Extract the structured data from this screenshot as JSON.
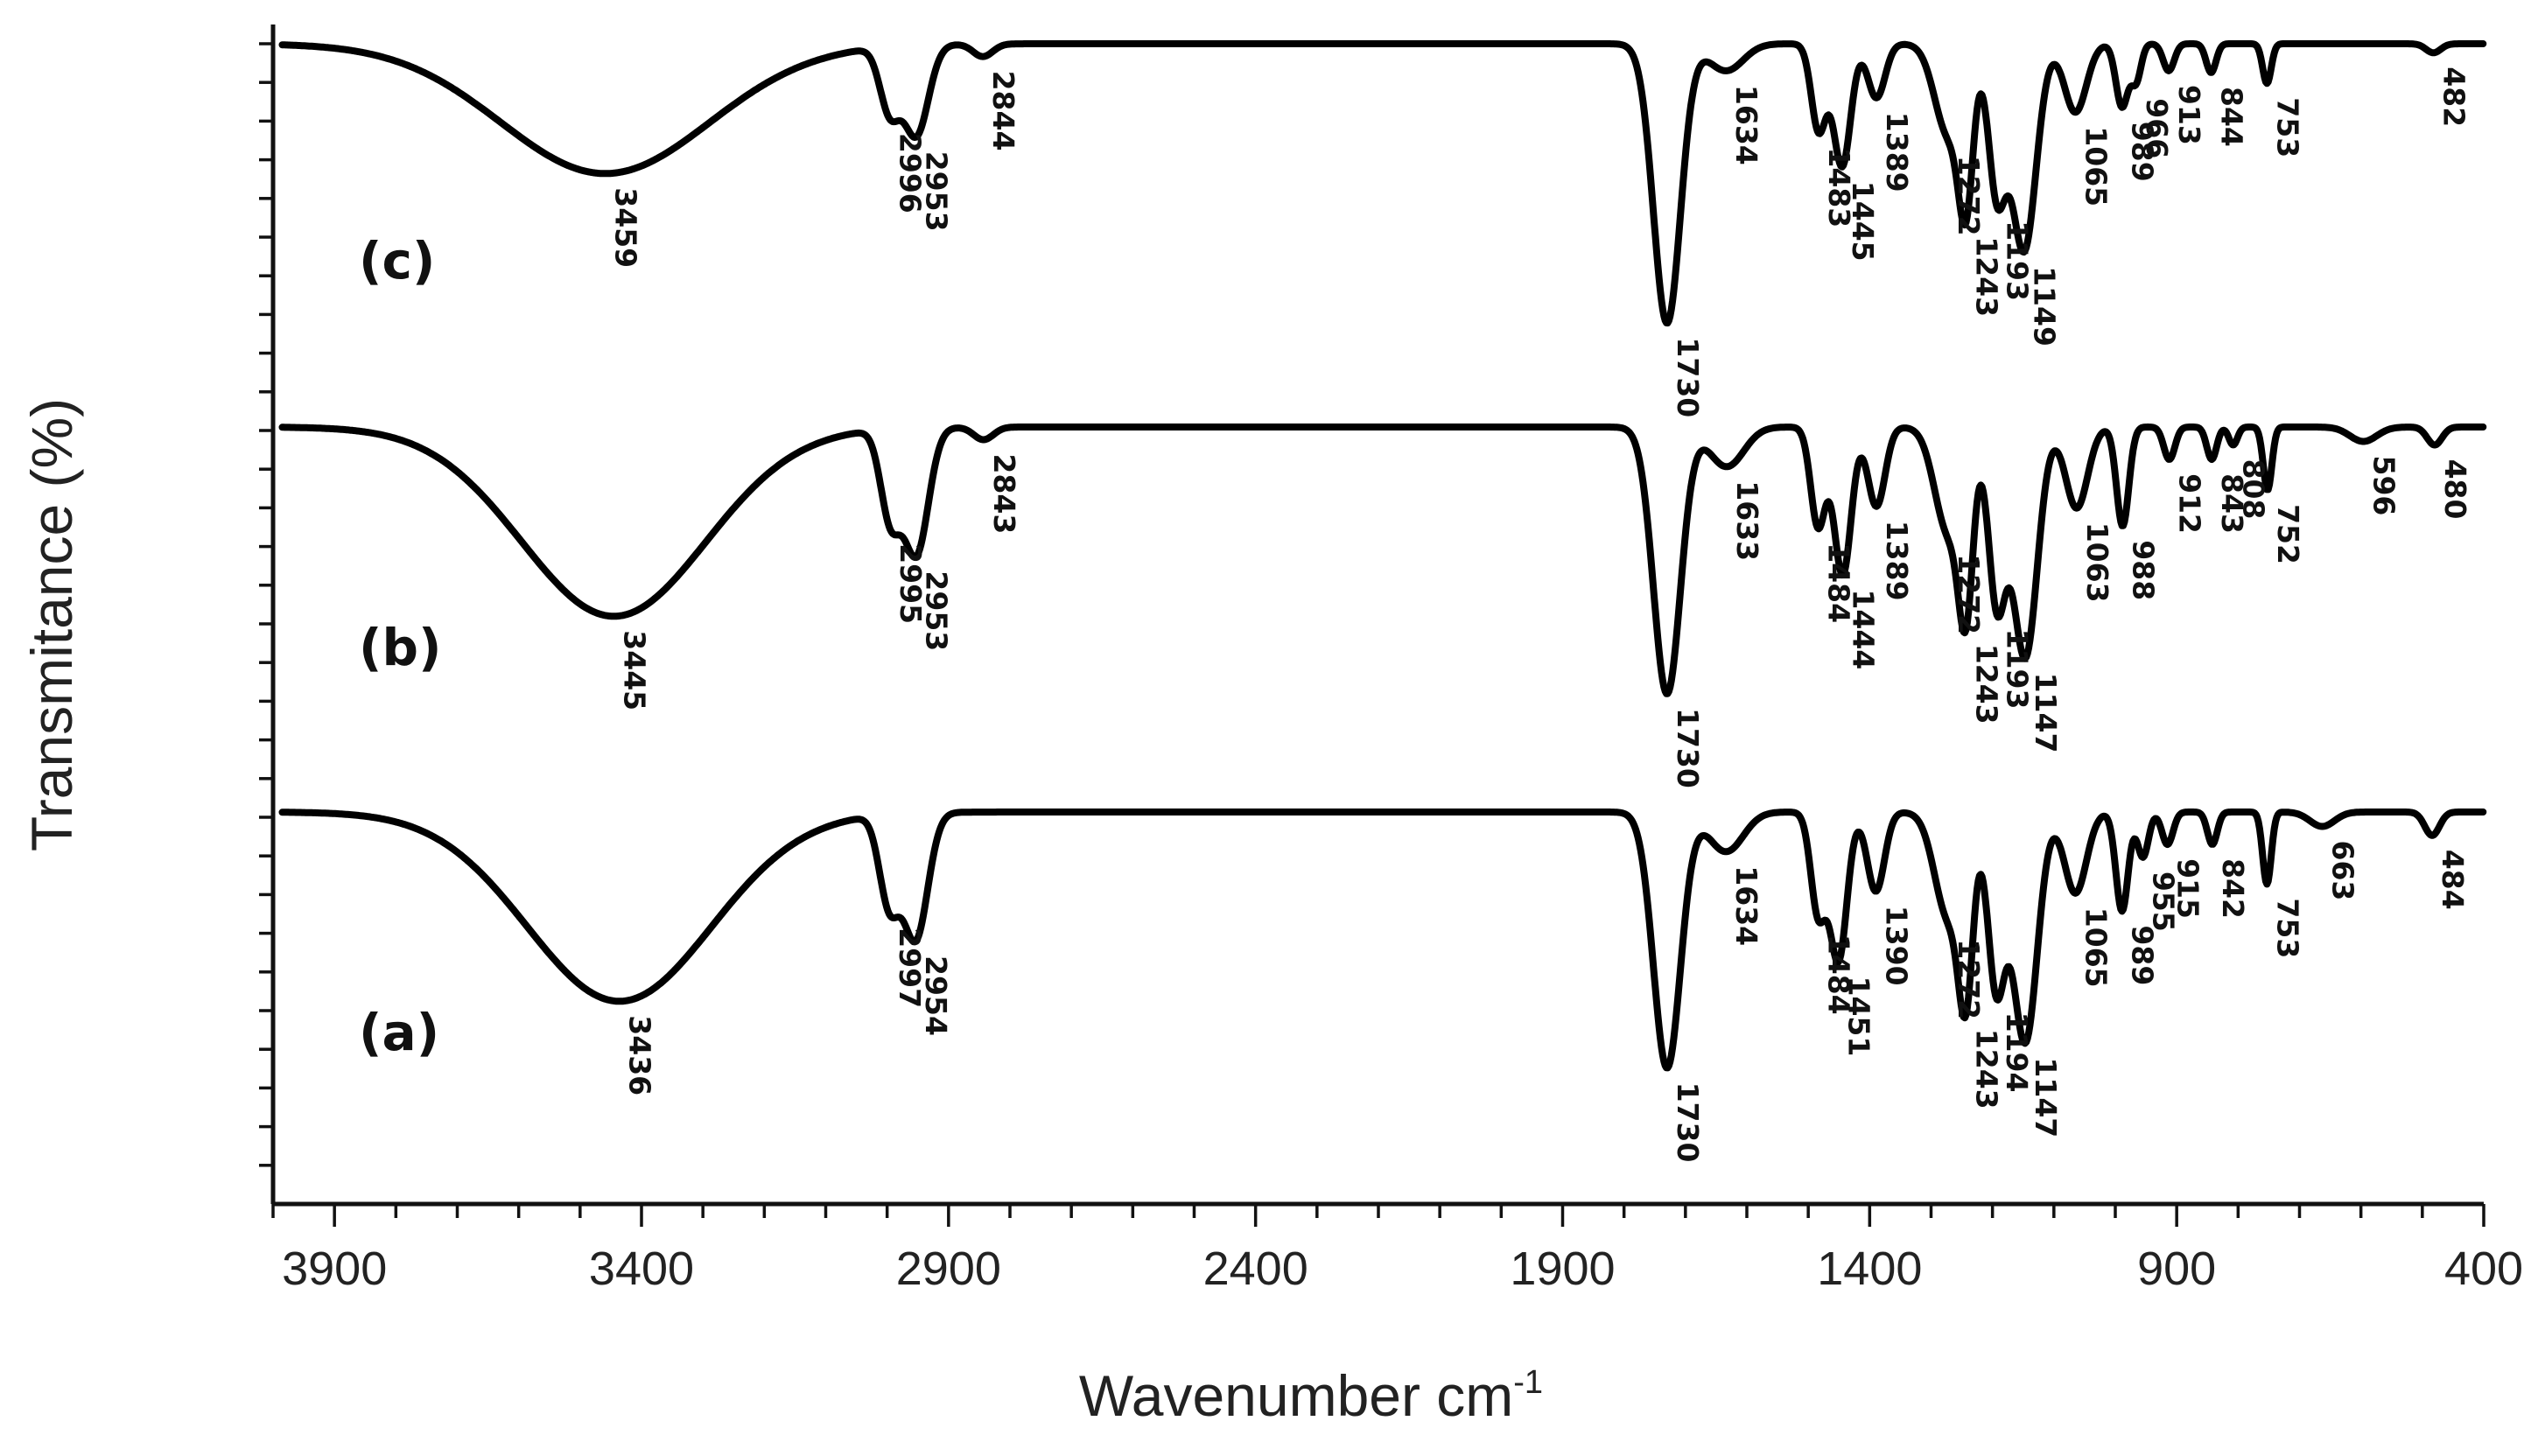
{
  "chart_data": {
    "type": "line",
    "title": "",
    "xlabel": "Wavenumber cm",
    "xlabel_superscript": "-1",
    "ylabel": "Transmitance (%)",
    "xlim": [
      4000,
      400
    ],
    "x_ticks": [
      3900,
      3400,
      2900,
      2400,
      1900,
      1400,
      900,
      400
    ],
    "x_tick_labels": [
      "3900",
      "3400",
      "2900",
      "2400",
      "1900",
      "1400",
      "900",
      "400"
    ],
    "grid": false,
    "series": [
      {
        "name": "(c)",
        "peaks": [
          {
            "wavenumber": 3459,
            "depth": 0.72,
            "width": 170,
            "label": "3459"
          },
          {
            "wavenumber": 2996,
            "depth": 0.35,
            "width": 16,
            "label": "2996"
          },
          {
            "wavenumber": 2953,
            "depth": 0.5,
            "width": 20,
            "label": "2953"
          },
          {
            "wavenumber": 2844,
            "depth": 0.07,
            "width": 16,
            "label": "2844"
          },
          {
            "wavenumber": 1730,
            "depth": 1.55,
            "width": 22,
            "label": "1730"
          },
          {
            "wavenumber": 1634,
            "depth": 0.15,
            "width": 28,
            "label": "1634"
          },
          {
            "wavenumber": 1483,
            "depth": 0.48,
            "width": 12,
            "label": "1483"
          },
          {
            "wavenumber": 1445,
            "depth": 0.68,
            "width": 14,
            "label": "1445"
          },
          {
            "wavenumber": 1389,
            "depth": 0.3,
            "width": 14,
            "label": "1389"
          },
          {
            "wavenumber": 1272,
            "depth": 0.5,
            "width": 22,
            "label": "1272"
          },
          {
            "wavenumber": 1243,
            "depth": 0.78,
            "width": 12,
            "label": "1243"
          },
          {
            "wavenumber": 1193,
            "depth": 0.8,
            "width": 14,
            "label": "1193"
          },
          {
            "wavenumber": 1149,
            "depth": 1.15,
            "width": 20,
            "label": "1149"
          },
          {
            "wavenumber": 1065,
            "depth": 0.38,
            "width": 18,
            "label": "1065"
          },
          {
            "wavenumber": 989,
            "depth": 0.35,
            "width": 10,
            "label": "989"
          },
          {
            "wavenumber": 966,
            "depth": 0.2,
            "width": 8,
            "label": "966"
          },
          {
            "wavenumber": 913,
            "depth": 0.15,
            "width": 9,
            "label": "913"
          },
          {
            "wavenumber": 844,
            "depth": 0.16,
            "width": 8,
            "label": "844"
          },
          {
            "wavenumber": 753,
            "depth": 0.22,
            "width": 7,
            "label": "753"
          },
          {
            "wavenumber": 482,
            "depth": 0.05,
            "width": 12,
            "label": "482"
          }
        ]
      },
      {
        "name": "(b)",
        "peaks": [
          {
            "wavenumber": 3445,
            "depth": 1.05,
            "width": 150,
            "label": "3445"
          },
          {
            "wavenumber": 2995,
            "depth": 0.48,
            "width": 16,
            "label": "2995"
          },
          {
            "wavenumber": 2953,
            "depth": 0.7,
            "width": 20,
            "label": "2953"
          },
          {
            "wavenumber": 2843,
            "depth": 0.07,
            "width": 16,
            "label": "2843"
          },
          {
            "wavenumber": 1730,
            "depth": 1.48,
            "width": 22,
            "label": "1730"
          },
          {
            "wavenumber": 1633,
            "depth": 0.22,
            "width": 28,
            "label": "1633"
          },
          {
            "wavenumber": 1484,
            "depth": 0.55,
            "width": 12,
            "label": "1484"
          },
          {
            "wavenumber": 1444,
            "depth": 0.82,
            "width": 14,
            "label": "1444"
          },
          {
            "wavenumber": 1389,
            "depth": 0.44,
            "width": 14,
            "label": "1389"
          },
          {
            "wavenumber": 1272,
            "depth": 0.58,
            "width": 22,
            "label": "1272"
          },
          {
            "wavenumber": 1243,
            "depth": 0.88,
            "width": 12,
            "label": "1243"
          },
          {
            "wavenumber": 1193,
            "depth": 0.95,
            "width": 14,
            "label": "1193"
          },
          {
            "wavenumber": 1147,
            "depth": 1.28,
            "width": 20,
            "label": "1147"
          },
          {
            "wavenumber": 1063,
            "depth": 0.45,
            "width": 18,
            "label": "1063"
          },
          {
            "wavenumber": 988,
            "depth": 0.55,
            "width": 10,
            "label": "988"
          },
          {
            "wavenumber": 912,
            "depth": 0.18,
            "width": 9,
            "label": "912"
          },
          {
            "wavenumber": 843,
            "depth": 0.18,
            "width": 8,
            "label": "843"
          },
          {
            "wavenumber": 808,
            "depth": 0.1,
            "width": 7,
            "label": "808"
          },
          {
            "wavenumber": 752,
            "depth": 0.35,
            "width": 7,
            "label": "752"
          },
          {
            "wavenumber": 596,
            "depth": 0.08,
            "width": 22,
            "label": "596"
          },
          {
            "wavenumber": 480,
            "depth": 0.1,
            "width": 12,
            "label": "480"
          }
        ]
      },
      {
        "name": "(a)",
        "peaks": [
          {
            "wavenumber": 3436,
            "depth": 1.05,
            "width": 150,
            "label": "3436"
          },
          {
            "wavenumber": 2997,
            "depth": 0.48,
            "width": 16,
            "label": "2997"
          },
          {
            "wavenumber": 2954,
            "depth": 0.7,
            "width": 20,
            "label": "2954"
          },
          {
            "wavenumber": 1730,
            "depth": 1.42,
            "width": 22,
            "label": "1730"
          },
          {
            "wavenumber": 1634,
            "depth": 0.22,
            "width": 28,
            "label": "1634"
          },
          {
            "wavenumber": 1484,
            "depth": 0.55,
            "width": 12,
            "label": "1484"
          },
          {
            "wavenumber": 1451,
            "depth": 0.82,
            "width": 14,
            "label": "1451"
          },
          {
            "wavenumber": 1390,
            "depth": 0.44,
            "width": 14,
            "label": "1390"
          },
          {
            "wavenumber": 1272,
            "depth": 0.58,
            "width": 22,
            "label": "1272"
          },
          {
            "wavenumber": 1243,
            "depth": 0.88,
            "width": 12,
            "label": "1243"
          },
          {
            "wavenumber": 1194,
            "depth": 0.95,
            "width": 14,
            "label": "1194"
          },
          {
            "wavenumber": 1147,
            "depth": 1.28,
            "width": 20,
            "label": "1147"
          },
          {
            "wavenumber": 1065,
            "depth": 0.45,
            "width": 18,
            "label": "1065"
          },
          {
            "wavenumber": 989,
            "depth": 0.55,
            "width": 10,
            "label": "989"
          },
          {
            "wavenumber": 955,
            "depth": 0.25,
            "width": 9,
            "label": "955"
          },
          {
            "wavenumber": 915,
            "depth": 0.18,
            "width": 9,
            "label": "915"
          },
          {
            "wavenumber": 842,
            "depth": 0.18,
            "width": 8,
            "label": "842"
          },
          {
            "wavenumber": 753,
            "depth": 0.4,
            "width": 7,
            "label": "753"
          },
          {
            "wavenumber": 663,
            "depth": 0.08,
            "width": 20,
            "label": "663"
          },
          {
            "wavenumber": 484,
            "depth": 0.13,
            "width": 12,
            "label": "484"
          }
        ]
      }
    ]
  }
}
